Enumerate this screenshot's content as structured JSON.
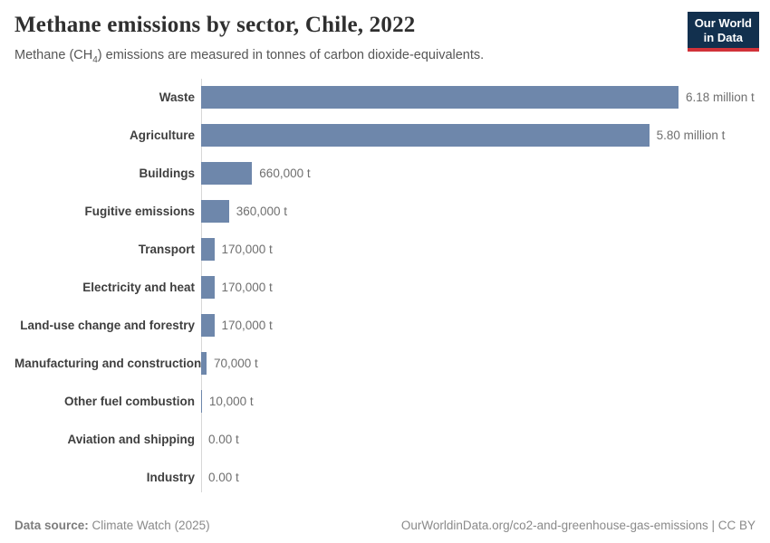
{
  "header": {
    "title": "Methane emissions by sector, Chile, 2022",
    "subtitle_prefix": "Methane (CH",
    "subtitle_sub": "4",
    "subtitle_suffix": ") emissions are measured in tonnes of carbon dioxide-equivalents.",
    "logo": {
      "line1": "Our World",
      "line2": "in Data"
    }
  },
  "chart_data": {
    "type": "bar",
    "orientation": "horizontal",
    "title": "Methane emissions by sector, Chile, 2022",
    "unit": "tonnes of carbon dioxide-equivalents",
    "xlim": [
      0,
      6180000
    ],
    "grid": false,
    "categories": [
      "Waste",
      "Agriculture",
      "Buildings",
      "Fugitive emissions",
      "Transport",
      "Electricity and heat",
      "Land-use change and forestry",
      "Manufacturing and construction",
      "Other fuel combustion",
      "Aviation and shipping",
      "Industry"
    ],
    "values": [
      6180000,
      5800000,
      660000,
      360000,
      170000,
      170000,
      170000,
      70000,
      10000,
      0,
      0
    ],
    "value_labels": [
      "6.18 million t",
      "5.80 million t",
      "660,000 t",
      "360,000 t",
      "170,000 t",
      "170,000 t",
      "170,000 t",
      "70,000 t",
      "10,000 t",
      "0.00 t",
      "0.00 t"
    ]
  },
  "colors": {
    "bar": "#6e87ab",
    "logo_navy": "#12304e",
    "logo_red": "#d13239"
  },
  "footer": {
    "datasource_label": "Data source:",
    "datasource_value": "Climate Watch (2025)",
    "right_text": "OurWorldinData.org/co2-and-greenhouse-gas-emissions | CC BY"
  }
}
